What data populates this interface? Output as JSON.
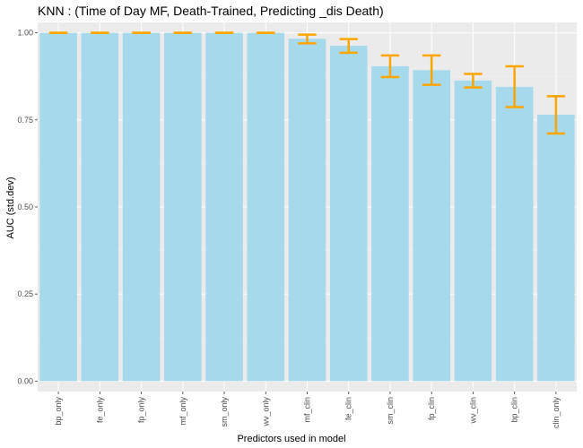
{
  "chart_data": {
    "type": "bar",
    "title": "KNN : (Time of Day MF, Death-Trained, Predicting _dis Death)",
    "xlabel": "Predictors used in model",
    "ylabel": "AUC (std.dev)",
    "ylim": [
      -0.03,
      1.03
    ],
    "yticks": [
      "0.00",
      "0.25",
      "0.50",
      "0.75",
      "1.00"
    ],
    "ytick_values": [
      0,
      0.25,
      0.5,
      0.75,
      1.0
    ],
    "categories": [
      "bp_only",
      "fe_only",
      "fp_only",
      "mf_only",
      "sm_only",
      "wv_only",
      "mf_clin",
      "fe_clin",
      "sm_clin",
      "fp_clin",
      "wv_clin",
      "bp_clin",
      "clin_only"
    ],
    "values": [
      1.0,
      1.0,
      1.0,
      1.0,
      1.0,
      1.0,
      0.983,
      0.963,
      0.904,
      0.893,
      0.863,
      0.845,
      0.765
    ],
    "error_low": [
      1.0,
      1.0,
      1.0,
      1.0,
      1.0,
      1.0,
      0.97,
      0.943,
      0.873,
      0.851,
      0.843,
      0.787,
      0.711
    ],
    "error_high": [
      1.0,
      1.0,
      1.0,
      1.0,
      1.0,
      1.0,
      0.995,
      0.982,
      0.935,
      0.935,
      0.882,
      0.904,
      0.818
    ],
    "grid": true,
    "colors": {
      "bar": "#a6d9ec",
      "error": "#ffa500",
      "panel": "#ebebeb",
      "grid_major": "#ffffff",
      "grid_minor": "#f5f5f5"
    }
  }
}
